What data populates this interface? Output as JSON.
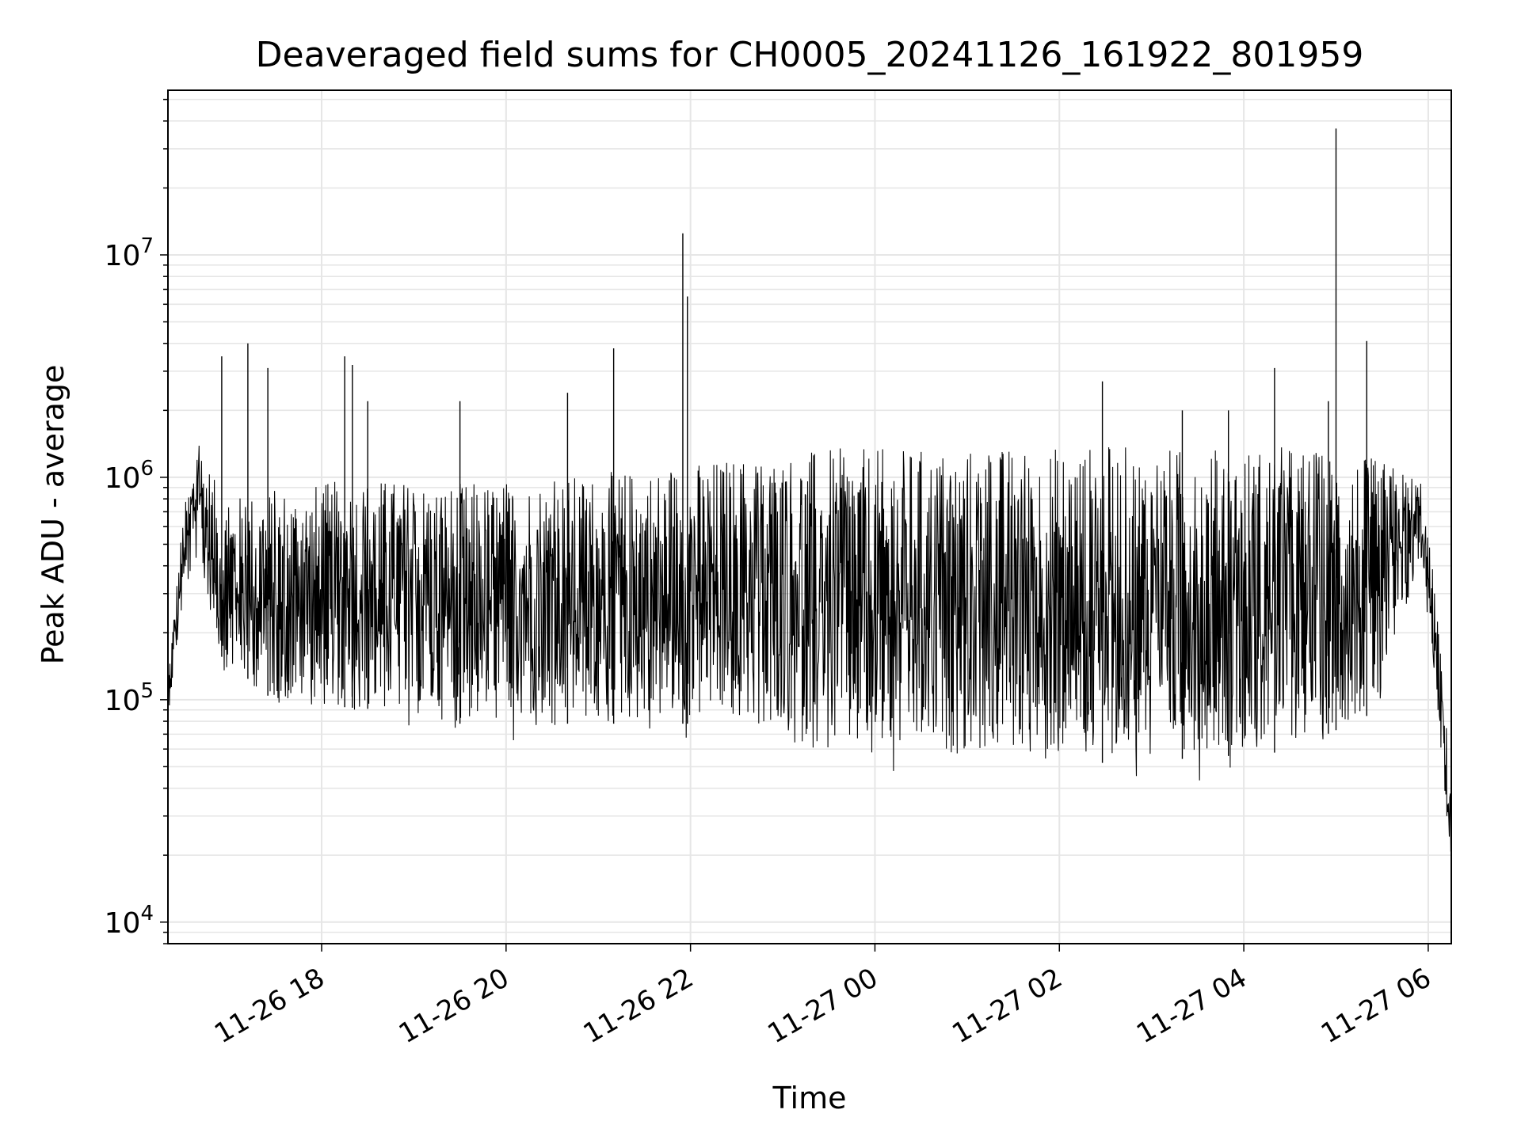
{
  "chart_data": {
    "type": "line",
    "title": "Deaveraged field sums for CH0005_20241126_161922_801959",
    "xlabel": "Time",
    "ylabel": "Peak ADU - average",
    "yscale": "log",
    "ylim": [
      8000,
      55000000
    ],
    "xlim": [
      "2024-11-26 16:20",
      "2024-11-27 06:15"
    ],
    "grid": true,
    "line_color": "#000000",
    "grid_color": "#e6e6e6",
    "x_ticks": [
      {
        "label": "11-26 18",
        "time": "2024-11-26 18:00"
      },
      {
        "label": "11-26 20",
        "time": "2024-11-26 20:00"
      },
      {
        "label": "11-26 22",
        "time": "2024-11-26 22:00"
      },
      {
        "label": "11-27 00",
        "time": "2024-11-27 00:00"
      },
      {
        "label": "11-27 02",
        "time": "2024-11-27 02:00"
      },
      {
        "label": "11-27 04",
        "time": "2024-11-27 04:00"
      },
      {
        "label": "11-27 06",
        "time": "2024-11-27 06:00"
      }
    ],
    "y_ticks": [
      {
        "base": "10",
        "exp": "4",
        "value": 10000
      },
      {
        "base": "10",
        "exp": "5",
        "value": 100000
      },
      {
        "base": "10",
        "exp": "6",
        "value": 1000000
      },
      {
        "base": "10",
        "exp": "7",
        "value": 10000000
      }
    ],
    "envelope": [
      {
        "time": "2024-11-26 16:20",
        "low": 80000,
        "high": 130000
      },
      {
        "time": "2024-11-26 16:30",
        "low": 250000,
        "high": 700000
      },
      {
        "time": "2024-11-26 16:40",
        "low": 400000,
        "high": 1500000
      },
      {
        "time": "2024-11-26 16:55",
        "low": 120000,
        "high": 800000
      },
      {
        "time": "2024-11-26 17:30",
        "low": 75000,
        "high": 900000
      },
      {
        "time": "2024-11-26 18:30",
        "low": 70000,
        "high": 1000000
      },
      {
        "time": "2024-11-26 19:30",
        "low": 60000,
        "high": 950000
      },
      {
        "time": "2024-11-26 20:30",
        "low": 60000,
        "high": 1000000
      },
      {
        "time": "2024-11-26 21:30",
        "low": 60000,
        "high": 1100000
      },
      {
        "time": "2024-11-26 22:30",
        "low": 60000,
        "high": 1250000
      },
      {
        "time": "2024-11-26 23:30",
        "low": 40000,
        "high": 1350000
      },
      {
        "time": "2024-11-27 00:30",
        "low": 40000,
        "high": 1350000
      },
      {
        "time": "2024-11-27 01:30",
        "low": 40000,
        "high": 1380000
      },
      {
        "time": "2024-11-27 02:30",
        "low": 40000,
        "high": 1400000
      },
      {
        "time": "2024-11-27 03:30",
        "low": 42000,
        "high": 1350000
      },
      {
        "time": "2024-11-27 04:30",
        "low": 45000,
        "high": 1400000
      },
      {
        "time": "2024-11-27 05:30",
        "low": 70000,
        "high": 1200000
      },
      {
        "time": "2024-11-27 05:55",
        "low": 400000,
        "high": 1000000
      },
      {
        "time": "2024-11-27 06:05",
        "low": 100000,
        "high": 300000
      },
      {
        "time": "2024-11-27 06:15",
        "low": 15000,
        "high": 40000
      }
    ],
    "spikes": [
      {
        "time": "2024-11-26 16:55",
        "value": 3500000
      },
      {
        "time": "2024-11-26 17:12",
        "value": 4000000
      },
      {
        "time": "2024-11-26 17:25",
        "value": 3100000
      },
      {
        "time": "2024-11-26 18:15",
        "value": 3500000
      },
      {
        "time": "2024-11-26 18:20",
        "value": 3200000
      },
      {
        "time": "2024-11-26 18:30",
        "value": 2200000
      },
      {
        "time": "2024-11-26 19:30",
        "value": 2200000
      },
      {
        "time": "2024-11-26 20:40",
        "value": 2400000
      },
      {
        "time": "2024-11-26 21:10",
        "value": 3800000
      },
      {
        "time": "2024-11-26 21:55",
        "value": 12500000
      },
      {
        "time": "2024-11-26 21:58",
        "value": 6500000
      },
      {
        "time": "2024-11-27 02:28",
        "value": 2700000
      },
      {
        "time": "2024-11-27 03:20",
        "value": 2000000
      },
      {
        "time": "2024-11-27 03:50",
        "value": 2000000
      },
      {
        "time": "2024-11-27 04:20",
        "value": 3100000
      },
      {
        "time": "2024-11-27 04:55",
        "value": 2200000
      },
      {
        "time": "2024-11-27 05:00",
        "value": 37000000
      },
      {
        "time": "2024-11-27 05:20",
        "value": 4100000
      }
    ]
  }
}
